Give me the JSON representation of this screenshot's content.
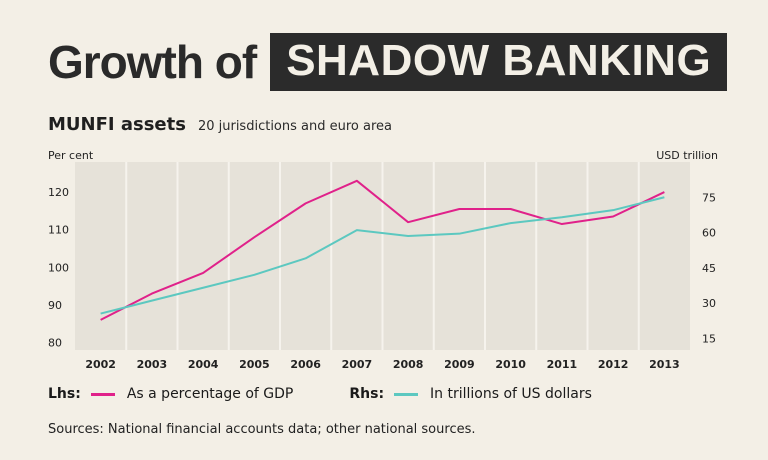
{
  "title": {
    "plain": "Growth of",
    "highlight": "SHADOW BANKING"
  },
  "subtitle": "MUNFI assets",
  "subtitle_note": "20 jurisdictions and euro area",
  "left_unit": "Per cent",
  "right_unit": "USD trillion",
  "legend": [
    {
      "tag": "Lhs:",
      "label": "As a percentage of GDP",
      "color": "#e0218a"
    },
    {
      "tag": "Rhs:",
      "label": "In trillions of US dollars",
      "color": "#5cc8c0"
    }
  ],
  "source": "Sources: National financial accounts data; other national sources.",
  "colors": {
    "background": "#f3efe6",
    "plot_bg": "#e6e2d9",
    "grid": "#f6f3ed",
    "title_box": "#2b2b2b"
  },
  "chart_data": {
    "type": "line",
    "categories": [
      "2002",
      "2003",
      "2004",
      "2005",
      "2006",
      "2007",
      "2008",
      "2009",
      "2010",
      "2011",
      "2012",
      "2013"
    ],
    "series": [
      {
        "axis": "left",
        "color": "#e0218a",
        "values": [
          86,
          93,
          98.5,
          108,
          117,
          123,
          112,
          115.5,
          115.5,
          111.5,
          113.5,
          120
        ]
      },
      {
        "axis": "right",
        "color": "#5cc8c0",
        "values": [
          25.5,
          31,
          36.5,
          42,
          49,
          61,
          58.5,
          59.5,
          64,
          66.5,
          69.5,
          75
        ]
      }
    ],
    "left_axis": {
      "ticks": [
        80,
        90,
        100,
        110,
        120
      ],
      "range": [
        78,
        128
      ]
    },
    "right_axis": {
      "ticks": [
        15,
        30,
        45,
        60,
        75
      ],
      "range": [
        10,
        90
      ]
    },
    "grid": true
  }
}
